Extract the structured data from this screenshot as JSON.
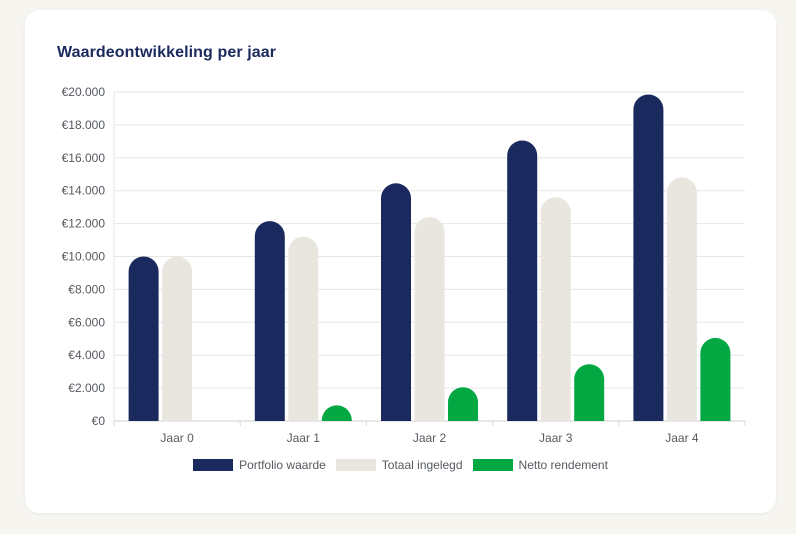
{
  "chart_data": {
    "type": "bar",
    "title": "Waardeontwikkeling per jaar",
    "categories": [
      "Jaar 0",
      "Jaar 1",
      "Jaar 2",
      "Jaar 3",
      "Jaar 4"
    ],
    "series": [
      {
        "name": "Portfolio waarde",
        "color": "#1b2a5e",
        "values": [
          10000,
          12150,
          14450,
          17050,
          19850
        ]
      },
      {
        "name": "Totaal ingelegd",
        "color": "#e9e6df",
        "values": [
          10000,
          11200,
          12400,
          13600,
          14800
        ]
      },
      {
        "name": "Netto rendement",
        "color": "#03a843",
        "values": [
          0,
          950,
          2050,
          3450,
          5050
        ]
      }
    ],
    "ylim": [
      0,
      20000
    ],
    "yticks": [
      0,
      2000,
      4000,
      6000,
      8000,
      10000,
      12000,
      14000,
      16000,
      18000,
      20000
    ],
    "ytick_labels": [
      "€0",
      "€2.000",
      "€4.000",
      "€6.000",
      "€8.000",
      "€10.000",
      "€12.000",
      "€14.000",
      "€16.000",
      "€18.000",
      "€20.000"
    ],
    "grid": true,
    "legend_position": "bottom"
  }
}
